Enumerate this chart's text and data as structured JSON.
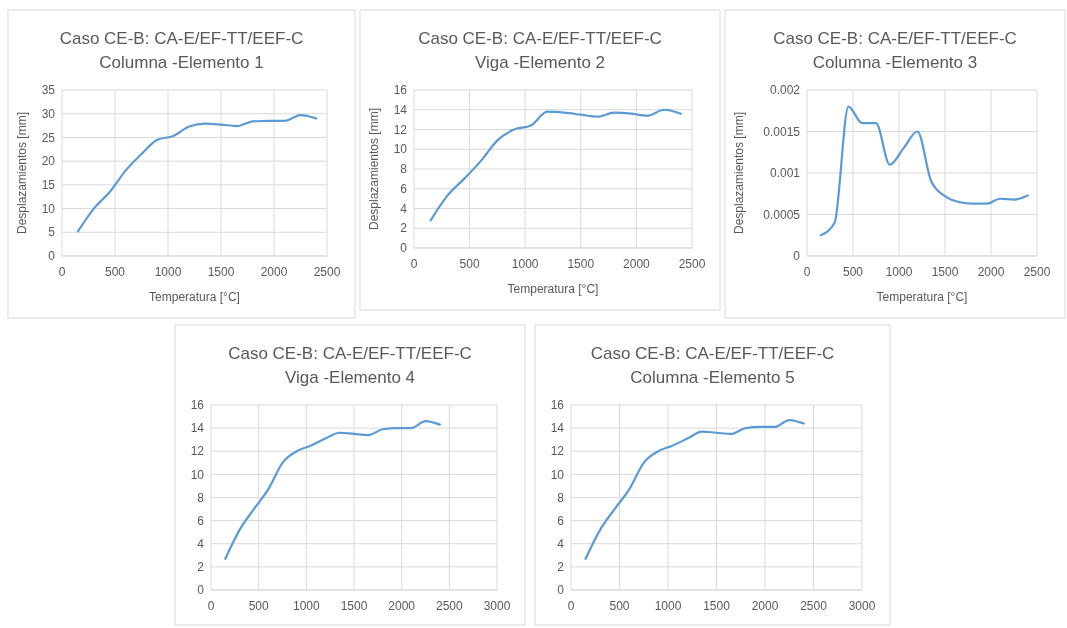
{
  "chart_data": [
    {
      "type": "line",
      "title": "Caso CE-B: CA-E/EF-TT/EEF-C",
      "subtitle": "Columna -Elemento 1",
      "xlabel": "Temperatura [°C]",
      "ylabel": "Desplazamientos [mm]",
      "x": [
        150,
        300,
        450,
        600,
        750,
        900,
        1050,
        1200,
        1350,
        1500,
        1650,
        1800,
        1950,
        2100,
        2250,
        2400
      ],
      "series": [
        {
          "color": "#5b9bd5",
          "values": [
            5.2,
            10,
            13.5,
            18,
            21.5,
            24.5,
            25.3,
            27.3,
            27.9,
            27.7,
            27.4,
            28.4,
            28.5,
            28.5,
            29.7,
            29
          ]
        }
      ],
      "xlim": [
        0,
        2500
      ],
      "xticks": [
        0,
        500,
        1000,
        1500,
        2000,
        2500
      ],
      "ylim": [
        0,
        35
      ],
      "yticks": [
        0,
        5,
        10,
        15,
        20,
        25,
        30,
        35
      ],
      "grid": true,
      "marker": "none",
      "line_style": "solid"
    },
    {
      "type": "line",
      "title": "Caso CE-B: CA-E/EF-TT/EEF-C",
      "subtitle": "Viga -Elemento 2",
      "xlabel": "Temperatura [°C]",
      "ylabel": "Desplazamientos [mm]",
      "x": [
        150,
        300,
        450,
        600,
        750,
        900,
        1050,
        1200,
        1350,
        1500,
        1650,
        1800,
        1950,
        2100,
        2250,
        2400
      ],
      "series": [
        {
          "color": "#5b9bd5",
          "values": [
            2.8,
            5.3,
            7,
            8.8,
            10.9,
            12,
            12.4,
            13.8,
            13.7,
            13.5,
            13.3,
            13.7,
            13.6,
            13.4,
            14,
            13.6
          ]
        }
      ],
      "xlim": [
        0,
        2500
      ],
      "xticks": [
        0,
        500,
        1000,
        1500,
        2000,
        2500
      ],
      "ylim": [
        0,
        16
      ],
      "yticks": [
        0,
        2,
        4,
        6,
        8,
        10,
        12,
        14,
        16
      ],
      "grid": true,
      "marker": "none",
      "line_style": "solid"
    },
    {
      "type": "line",
      "title": "Caso CE-B: CA-E/EF-TT/EEF-C",
      "subtitle": "Columna -Elemento 3",
      "xlabel": "Temperatura [°C]",
      "ylabel": "Desplazamientos [mm]",
      "x": [
        150,
        300,
        450,
        600,
        750,
        900,
        1050,
        1200,
        1350,
        1500,
        1650,
        1800,
        1950,
        2100,
        2250,
        2400
      ],
      "series": [
        {
          "color": "#5b9bd5",
          "values": [
            0.00025,
            0.0004,
            0.0018,
            0.0016,
            0.0016,
            0.0011,
            0.0013,
            0.0015,
            0.0009,
            0.00072,
            0.00065,
            0.00063,
            0.00063,
            0.00069,
            0.00068,
            0.00073
          ]
        }
      ],
      "xlim": [
        0,
        2500
      ],
      "xticks": [
        0,
        500,
        1000,
        1500,
        2000,
        2500
      ],
      "ylim": [
        0,
        0.002
      ],
      "yticks": [
        0,
        0.0005,
        0.001,
        0.0015,
        0.002
      ],
      "grid": true,
      "marker": "none",
      "line_style": "solid"
    },
    {
      "type": "line",
      "title": "Caso CE-B: CA-E/EF-TT/EEF-C",
      "subtitle": "Viga -Elemento 4",
      "x": [
        150,
        300,
        450,
        600,
        750,
        900,
        1050,
        1200,
        1350,
        1500,
        1650,
        1800,
        1950,
        2100,
        2250,
        2400
      ],
      "series": [
        {
          "color": "#5b9bd5",
          "values": [
            2.7,
            5.2,
            7,
            8.7,
            11,
            12,
            12.5,
            13.1,
            13.6,
            13.5,
            13.4,
            13.9,
            14,
            14,
            14.6,
            14.3
          ]
        }
      ],
      "xlim": [
        0,
        3000
      ],
      "xticks": [
        0,
        500,
        1000,
        1500,
        2000,
        2500,
        3000
      ],
      "ylim": [
        0,
        16
      ],
      "yticks": [
        0,
        2,
        4,
        6,
        8,
        10,
        12,
        14,
        16
      ],
      "grid": true,
      "marker": "none",
      "line_style": "solid"
    },
    {
      "type": "line",
      "title": "Caso CE-B: CA-E/EF-TT/EEF-C",
      "subtitle": "Columna -Elemento 5",
      "x": [
        150,
        300,
        450,
        600,
        750,
        900,
        1050,
        1200,
        1350,
        1500,
        1650,
        1800,
        1950,
        2100,
        2250,
        2400
      ],
      "series": [
        {
          "color": "#5b9bd5",
          "values": [
            2.7,
            5.2,
            7,
            8.7,
            11,
            12,
            12.5,
            13.1,
            13.7,
            13.6,
            13.5,
            14,
            14.1,
            14.1,
            14.7,
            14.4
          ]
        }
      ],
      "xlim": [
        0,
        3000
      ],
      "xticks": [
        0,
        500,
        1000,
        1500,
        2000,
        2500,
        3000
      ],
      "ylim": [
        0,
        16
      ],
      "yticks": [
        0,
        2,
        4,
        6,
        8,
        10,
        12,
        14,
        16
      ],
      "grid": true,
      "marker": "none",
      "line_style": "solid"
    }
  ]
}
